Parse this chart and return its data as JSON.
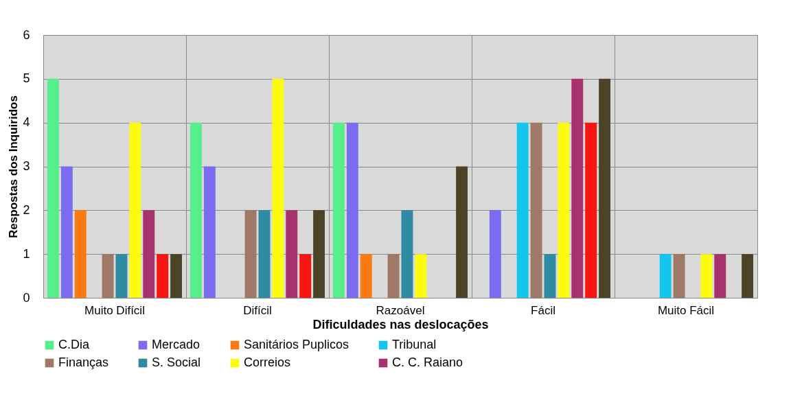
{
  "chart_data": {
    "type": "bar",
    "xlabel": "Dificuldades nas deslocações",
    "ylabel": "Respostas dos Inquiridos",
    "categories": [
      "Muito Difícil",
      "Difícil",
      "Razoável",
      "Fácil",
      "Muito Fácil"
    ],
    "series": [
      {
        "name": "C.Dia",
        "color": "#55f08c",
        "values": [
          5,
          4,
          4,
          0,
          0
        ]
      },
      {
        "name": "Mercado",
        "color": "#7b6cf0",
        "values": [
          3,
          3,
          4,
          2,
          0
        ]
      },
      {
        "name": "Sanitários Puplicos",
        "color": "#fb7a12",
        "values": [
          2,
          0,
          1,
          0,
          0
        ]
      },
      {
        "name": "Tribunal",
        "color": "#14c6ee",
        "values": [
          0,
          0,
          0,
          4,
          1
        ]
      },
      {
        "name": "Finanças",
        "color": "#a07868",
        "values": [
          1,
          2,
          1,
          4,
          1
        ]
      },
      {
        "name": "S. Social",
        "color": "#2f8ba3",
        "values": [
          1,
          2,
          2,
          1,
          0
        ]
      },
      {
        "name": " Correios",
        "color": "#fbfb10",
        "values": [
          4,
          5,
          1,
          4,
          1
        ]
      },
      {
        "name": "C. C. Raiano",
        "color": "#a8326e",
        "values": [
          2,
          2,
          0,
          5,
          1
        ]
      },
      {
        "color": "#fa1414",
        "values": [
          1,
          1,
          0,
          4,
          0
        ]
      },
      {
        "color": "#4a4527",
        "values": [
          1,
          2,
          3,
          5,
          1
        ]
      }
    ],
    "ylim": [
      0,
      6
    ],
    "yticks": [
      0,
      1,
      2,
      3,
      4,
      5,
      6
    ],
    "grid": true,
    "legend": "bottom"
  }
}
